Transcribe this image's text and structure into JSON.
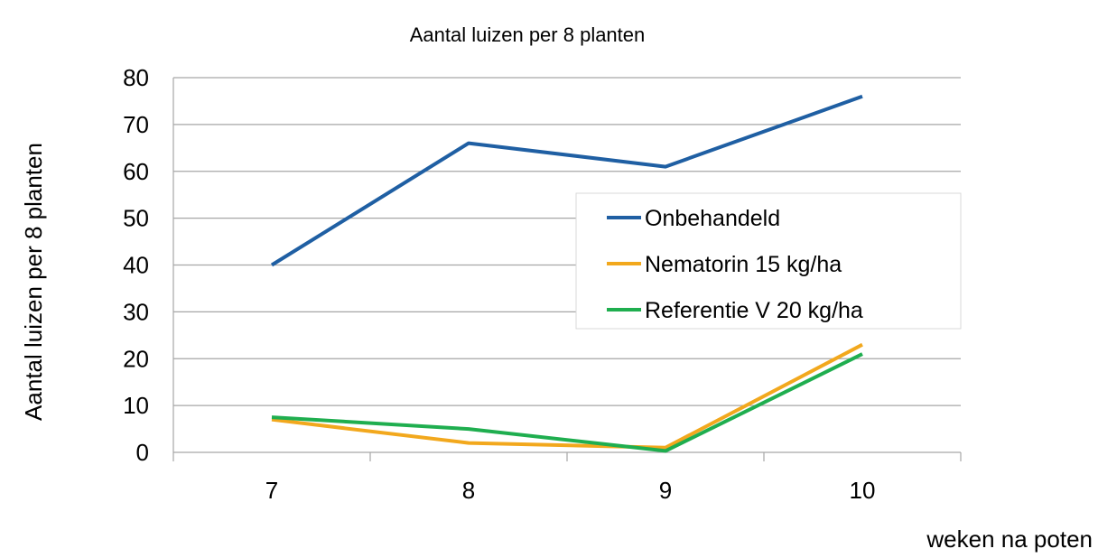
{
  "chart_data": {
    "type": "line",
    "title": "Aantal luizen per 8 planten",
    "xlabel": "weken na poten",
    "ylabel": "Aantal luizen per 8 planten",
    "categories": [
      "7",
      "8",
      "9",
      "10"
    ],
    "ylim": [
      0,
      80
    ],
    "yticks": [
      "0",
      "10",
      "20",
      "30",
      "40",
      "50",
      "60",
      "70",
      "80"
    ],
    "grid": "horizontal",
    "legend_position": "right",
    "series": [
      {
        "name": "Onbehandeld",
        "color": "#1f5fa3",
        "values": [
          40,
          66,
          61,
          76
        ]
      },
      {
        "name": "Nematorin 15 kg/ha",
        "color": "#f2a81d",
        "values": [
          7,
          2,
          1,
          23
        ]
      },
      {
        "name": "Referentie V 20 kg/ha",
        "color": "#1fae4f",
        "values": [
          7.5,
          5,
          0.3,
          21
        ]
      }
    ]
  }
}
